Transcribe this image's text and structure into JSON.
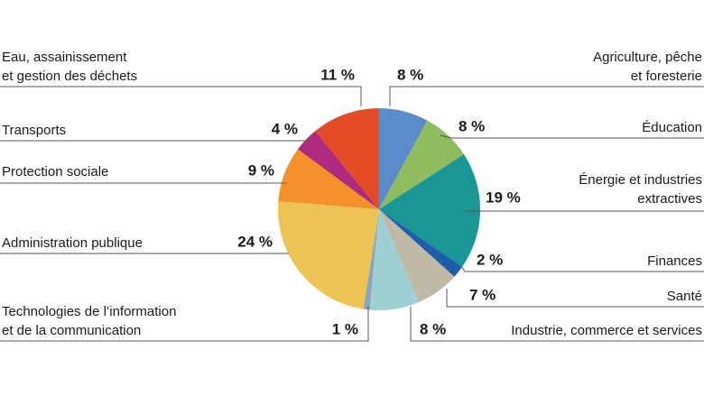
{
  "chart_data": {
    "type": "pie",
    "categories": [
      "Agriculture, pêche\net foresterie",
      "Éducation",
      "Énergie et industries\nextractives",
      "Finances",
      "Santé",
      "Industrie, commerce et services",
      "Technologies de l’information\net de la communication",
      "Administration publique",
      "Protection sociale",
      "Transports",
      "Eau, assainissement\net gestion des déchets"
    ],
    "values": [
      8,
      8,
      19,
      2,
      7,
      8,
      1,
      24,
      9,
      4,
      11
    ],
    "value_labels": [
      "8 %",
      "8 %",
      "19 %",
      "2 %",
      "7 %",
      "8 %",
      "1 %",
      "24 %",
      "9 %",
      "4 %",
      "11 %"
    ],
    "colors": [
      "#5b8bc9",
      "#8fbc5f",
      "#1a9696",
      "#1f5ea8",
      "#bfbaa6",
      "#9ecfd3",
      "#8aa6b6",
      "#ecc453",
      "#f3922b",
      "#b02a80",
      "#e44c27"
    ]
  }
}
